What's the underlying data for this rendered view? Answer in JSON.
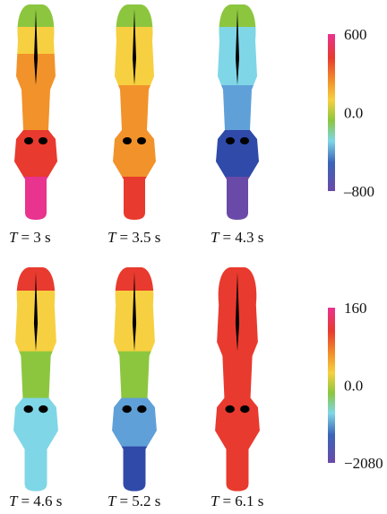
{
  "panels": [
    {
      "var": "T",
      "rest": "= 3 s"
    },
    {
      "var": "T",
      "rest": "= 3.5 s"
    },
    {
      "var": "T",
      "rest": "= 4.3 s"
    },
    {
      "var": "T",
      "rest": "= 4.6 s"
    },
    {
      "var": "T",
      "rest": "= 5.2 s"
    },
    {
      "var": "T",
      "rest": "= 6.1 s"
    }
  ],
  "colorbars": [
    {
      "labels": [
        "600",
        "0.0",
        "–800"
      ]
    },
    {
      "labels": [
        "160",
        "0.0",
        "−2080"
      ]
    }
  ]
}
